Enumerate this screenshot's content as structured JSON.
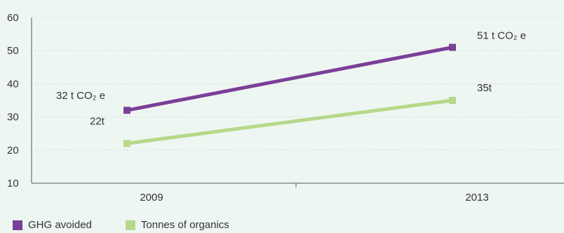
{
  "chart_data": {
    "type": "line",
    "x": [
      "2009",
      "2013"
    ],
    "ylim": [
      10,
      60
    ],
    "yticks": [
      10,
      20,
      30,
      40,
      50,
      60
    ],
    "grid": "horizontal-dashed",
    "legend_position": "bottom-left",
    "series": [
      {
        "name": "GHG avoided",
        "color": "#7b3f98",
        "values": [
          32,
          51
        ],
        "labels": [
          "32 t CO₂ e",
          "51 t CO₂ e"
        ]
      },
      {
        "name": "Tonnes of organics",
        "color": "#b5d98a",
        "values": [
          22,
          35
        ],
        "labels": [
          "22t",
          "35t"
        ]
      }
    ]
  }
}
